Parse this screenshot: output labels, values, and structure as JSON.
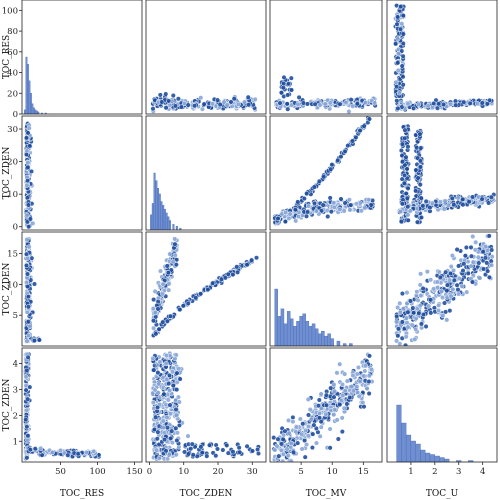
{
  "chart_data": {
    "type": "pairplot",
    "variables": [
      "TOC_RES",
      "TOC_ZDEN",
      "TOC_MV",
      "TOC_U"
    ],
    "y_axis_labels": [
      "TOC_RES",
      "TOC_ZDEN",
      "TOC_ZDEN",
      "TOC_ZDEN"
    ],
    "x_axis_labels": [
      "TOC_RES",
      "TOC_ZDEN",
      "TOC_MV",
      "TOC_U"
    ],
    "colors": {
      "point": "#1f4e9e",
      "point_light": "#8aa7d8",
      "hist": "#6f8fd1",
      "hist_edge": "#3a5fb0"
    },
    "ranges": {
      "TOC_RES": [
        0,
        110
      ],
      "TOC_ZDEN": [
        0,
        35
      ],
      "TOC_MV": [
        0,
        18
      ],
      "TOC_U": [
        0,
        4.6
      ]
    },
    "ticks": {
      "TOC_RES": [
        0,
        20,
        40,
        60,
        80,
        100
      ],
      "TOC_ZDEN": [
        0,
        10,
        20,
        30
      ],
      "TOC_MV": [
        5,
        10,
        15
      ],
      "TOC_U": [
        1,
        2,
        3,
        4
      ]
    },
    "x_display_ranges": {
      "TOC_RES": [
        -2,
        160
      ],
      "TOC_ZDEN": [
        -1,
        34
      ],
      "TOC_MV": [
        0,
        18
      ],
      "TOC_U": [
        0,
        4.6
      ]
    },
    "x_ticks": {
      "TOC_RES": [
        50,
        100,
        150
      ],
      "TOC_ZDEN": [
        0,
        10,
        20,
        30
      ],
      "TOC_MV": [
        5,
        10,
        15
      ],
      "TOC_U": [
        1,
        2,
        3,
        4
      ]
    },
    "row_y": [
      {
        "var": "TOC_RES",
        "range": [
          0,
          110
        ],
        "ticks": [
          0,
          20,
          40,
          60,
          80,
          100
        ]
      },
      {
        "var": "TOC_ZDEN",
        "range": [
          -1,
          34
        ],
        "ticks": [
          0,
          10,
          20,
          30
        ]
      },
      {
        "var": "TOC_MV",
        "range": [
          0,
          18.5
        ],
        "ticks": [
          5,
          10,
          15
        ]
      },
      {
        "var": "TOC_U",
        "range": [
          0.2,
          4.6
        ],
        "ticks": [
          1,
          2,
          3,
          4
        ]
      }
    ],
    "histograms": {
      "TOC_RES": [
        [
          2,
          4
        ],
        [
          4,
          55
        ],
        [
          6,
          48
        ],
        [
          8,
          32
        ],
        [
          10,
          20
        ],
        [
          12,
          10
        ],
        [
          14,
          6
        ],
        [
          16,
          4
        ],
        [
          18,
          3
        ],
        [
          20,
          2
        ],
        [
          25,
          1
        ],
        [
          30,
          1
        ]
      ],
      "TOC_ZDEN": [
        [
          0.5,
          8
        ],
        [
          1,
          14
        ],
        [
          1.5,
          30
        ],
        [
          2,
          26
        ],
        [
          2.5,
          22
        ],
        [
          3,
          19
        ],
        [
          3.5,
          15
        ],
        [
          4,
          13
        ],
        [
          4.5,
          11
        ],
        [
          5,
          9
        ],
        [
          5.5,
          7
        ],
        [
          6,
          5
        ],
        [
          7,
          3
        ],
        [
          8,
          2
        ],
        [
          9,
          1
        ]
      ],
      "TOC_MV": [
        [
          1,
          23
        ],
        [
          1.5,
          12
        ],
        [
          2,
          15
        ],
        [
          2.5,
          9
        ],
        [
          3,
          14
        ],
        [
          3.5,
          11
        ],
        [
          4,
          8
        ],
        [
          4.5,
          10
        ],
        [
          5,
          12
        ],
        [
          5.5,
          13
        ],
        [
          6,
          10
        ],
        [
          6.5,
          8
        ],
        [
          7,
          9
        ],
        [
          7.5,
          7
        ],
        [
          8,
          5
        ],
        [
          8.5,
          6
        ],
        [
          9,
          4
        ],
        [
          9.5,
          5
        ],
        [
          10,
          3
        ],
        [
          11,
          2
        ],
        [
          12,
          1
        ],
        [
          13,
          1
        ]
      ],
      "TOC_U": [
        [
          0.5,
          38
        ],
        [
          0.7,
          26
        ],
        [
          0.9,
          18
        ],
        [
          1.1,
          14
        ],
        [
          1.3,
          12
        ],
        [
          1.5,
          8
        ],
        [
          1.7,
          6
        ],
        [
          1.9,
          5
        ],
        [
          2.1,
          4
        ],
        [
          2.3,
          3
        ],
        [
          2.5,
          2
        ],
        [
          3.0,
          1
        ],
        [
          3.5,
          1
        ]
      ]
    }
  }
}
